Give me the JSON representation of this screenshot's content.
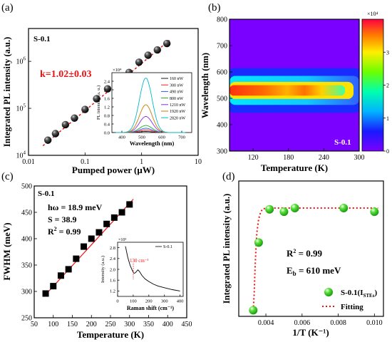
{
  "chart_data": [
    {
      "panel_label": "(a)",
      "type": "scatter",
      "sample": "S-0.1",
      "xlabel": "Pumped power (μW)",
      "ylabel": "Integrated PL intensity (a.u.)",
      "xscale": "log",
      "yscale": "log",
      "xlim": [
        0.01,
        10
      ],
      "ylim": [
        10000,
        5000000
      ],
      "xticks": [
        {
          "v": 0.01,
          "t": "0.01"
        },
        {
          "v": 0.1,
          "t": "0.1"
        },
        {
          "v": 1,
          "t": "1"
        },
        {
          "v": 10,
          "t": "10"
        }
      ],
      "yticks": [
        {
          "v": 10000,
          "t": "10",
          "e": "4"
        },
        {
          "v": 100000,
          "t": "10",
          "e": "5"
        },
        {
          "v": 1000000,
          "t": "10",
          "e": "6"
        }
      ],
      "annotation": "k=1.02±0.03",
      "points": {
        "x": [
          0.022,
          0.03,
          0.045,
          0.065,
          0.1,
          0.16,
          0.25,
          0.4,
          0.6,
          0.9,
          1.3,
          1.9,
          2.8
        ],
        "y": [
          21000,
          29000,
          45000,
          62000,
          95000,
          160000,
          260000,
          390000,
          580000,
          960000,
          1350000,
          1750000,
          2400000
        ]
      },
      "fit": {
        "x": [
          0.018,
          3.2
        ],
        "y": [
          16000,
          2900000
        ]
      },
      "inset": {
        "type": "line",
        "xlabel": "Wavelength (nm)",
        "ylabel": "PL intensity (a. u.)",
        "multiplier": "×10⁴",
        "xlim": [
          350,
          750
        ],
        "ylim": [
          0,
          2.8
        ],
        "xticks": [
          {
            "v": 400,
            "t": "400"
          },
          {
            "v": 500,
            "t": "500"
          },
          {
            "v": 600,
            "t": "600"
          },
          {
            "v": 700,
            "t": "700"
          }
        ],
        "yticks": [
          {
            "v": 0,
            "t": "0.0"
          },
          {
            "v": 0.4,
            "t": "0.4"
          },
          {
            "v": 0.8,
            "t": "0.8"
          },
          {
            "v": 1.2,
            "t": "1.2"
          },
          {
            "v": 1.6,
            "t": "1.6"
          },
          {
            "v": 2.0,
            "t": "2.0"
          },
          {
            "v": 2.4,
            "t": "2.4"
          }
        ],
        "peak_center": 520,
        "peak_width": 45,
        "series": [
          {
            "name": "160 nW",
            "peak": 0.05,
            "color": "#1a1a1a"
          },
          {
            "name": "300 nW",
            "peak": 0.12,
            "color": "#ff1a1a"
          },
          {
            "name": "490 nW",
            "peak": 0.2,
            "color": "#3355ee"
          },
          {
            "name": "800 nW",
            "peak": 0.33,
            "color": "#22aa22"
          },
          {
            "name": "1210 nW",
            "peak": 0.75,
            "color": "#8a2be2"
          },
          {
            "name": "1920 nW",
            "peak": 1.3,
            "color": "#cc7a00"
          },
          {
            "name": "2820 nW",
            "peak": 2.55,
            "color": "#00b8c8"
          }
        ]
      }
    },
    {
      "panel_label": "(b)",
      "type": "heatmap",
      "sample": "S-0.1",
      "xlabel": "Temperature (K)",
      "ylabel": "Wavelength (nm)",
      "xlim": [
        80,
        300
      ],
      "ylim": [
        300,
        800
      ],
      "xticks": [
        {
          "v": 120,
          "t": "120"
        },
        {
          "v": 180,
          "t": "180"
        },
        {
          "v": 240,
          "t": "240"
        },
        {
          "v": 300,
          "t": "300"
        }
      ],
      "yticks": [
        {
          "v": 300,
          "t": "300"
        },
        {
          "v": 400,
          "t": "400"
        },
        {
          "v": 500,
          "t": "500"
        },
        {
          "v": 600,
          "t": "600"
        },
        {
          "v": 700,
          "t": "700"
        },
        {
          "v": 800,
          "t": "800"
        }
      ],
      "colorbar": {
        "multiplier": "×10⁴",
        "range": [
          0,
          4
        ],
        "ticks": [
          {
            "v": 0,
            "t": "0"
          },
          {
            "v": 1,
            "t": "1"
          },
          {
            "v": 2,
            "t": "2"
          },
          {
            "v": 3,
            "t": "3"
          }
        ]
      },
      "band": {
        "center_nm": 530,
        "width_nm": 25,
        "intensity_by_T": [
          {
            "T": 80,
            "I": 3.8
          },
          {
            "T": 150,
            "I": 3.2
          },
          {
            "T": 190,
            "I": 2.6
          },
          {
            "T": 225,
            "I": 3.1
          },
          {
            "T": 260,
            "I": 2.2
          },
          {
            "T": 300,
            "I": 1.2
          }
        ]
      }
    },
    {
      "panel_label": "(c)",
      "type": "scatter",
      "sample": "S-0.1",
      "xlabel": "Temperature (K)",
      "ylabel": "FWHM (meV)",
      "xlim": [
        50,
        450
      ],
      "ylim": [
        250,
        500
      ],
      "xticks": [
        {
          "v": 50,
          "t": "50"
        },
        {
          "v": 100,
          "t": "100"
        },
        {
          "v": 150,
          "t": "150"
        },
        {
          "v": 200,
          "t": "200"
        },
        {
          "v": 250,
          "t": "250"
        },
        {
          "v": 300,
          "t": "300"
        },
        {
          "v": 350,
          "t": "350"
        },
        {
          "v": 400,
          "t": "400"
        },
        {
          "v": 450,
          "t": "450"
        }
      ],
      "yticks": [
        {
          "v": 250,
          "t": "250"
        },
        {
          "v": 300,
          "t": "300"
        },
        {
          "v": 350,
          "t": "350"
        },
        {
          "v": 400,
          "t": "400"
        },
        {
          "v": 450,
          "t": "450"
        },
        {
          "v": 500,
          "t": "500"
        }
      ],
      "params": {
        "homega": "hω = 18.9 meV",
        "S": "S = 38.9",
        "R2_lead": "R",
        "R2_sup": "2",
        "R2_val": " = 0.99"
      },
      "points": {
        "x": [
          80,
          100,
          120,
          140,
          160,
          180,
          200,
          220,
          240,
          260,
          280,
          300
        ],
        "y": [
          296,
          310,
          330,
          342,
          362,
          385,
          400,
          412,
          428,
          440,
          450,
          465
        ]
      },
      "fit": {
        "x": [
          75,
          310
        ],
        "y": [
          290,
          475
        ]
      },
      "inset": {
        "type": "line",
        "xlabel": "Raman shift (cm⁻¹)",
        "ylabel": "Intensity (a.u.)",
        "multiplier": "×10³",
        "legend": "S-0.1",
        "annotation": "130 cm⁻¹",
        "xlim": [
          0,
          420
        ],
        "ylim": [
          1.0,
          3.0
        ],
        "xticks": [
          {
            "v": 0,
            "t": "0"
          },
          {
            "v": 100,
            "t": "100"
          },
          {
            "v": 200,
            "t": "200"
          },
          {
            "v": 300,
            "t": "300"
          },
          {
            "v": 400,
            "t": "400"
          }
        ],
        "yticks": [
          {
            "v": 1.2,
            "t": "1.2"
          },
          {
            "v": 1.6,
            "t": "1.6"
          },
          {
            "v": 2.0,
            "t": "2.0"
          },
          {
            "v": 2.4,
            "t": "2.4"
          },
          {
            "v": 2.8,
            "t": "2.8"
          }
        ],
        "curve": {
          "x": [
            50,
            65,
            80,
            95,
            105,
            115,
            125,
            130,
            140,
            155,
            175,
            200,
            230,
            260,
            300,
            350,
            400
          ],
          "y": [
            2.85,
            2.45,
            2.15,
            1.95,
            1.85,
            1.88,
            1.95,
            1.98,
            1.92,
            1.78,
            1.65,
            1.55,
            1.45,
            1.38,
            1.32,
            1.25,
            1.2
          ]
        }
      }
    },
    {
      "panel_label": "(d)",
      "type": "scatter",
      "xlabel": "1/T (K⁻¹)",
      "ylabel": "Integrated PL intensity (a.u.)",
      "xlim": [
        0.0025,
        0.0105
      ],
      "xticks": [
        {
          "v": 0.004,
          "t": "0.004"
        },
        {
          "v": 0.006,
          "t": "0.006"
        },
        {
          "v": 0.008,
          "t": "0.008"
        },
        {
          "v": 0.01,
          "t": "0.010"
        }
      ],
      "ylim": [
        0,
        1.1
      ],
      "params": {
        "R2_lead": "R",
        "R2_sup": "2",
        "R2_val": " = 0.99",
        "Eb_lead": "E",
        "Eb_sub": "b",
        "Eb_val": " = 610 meV"
      },
      "legend": {
        "points": "S-0.1(I",
        "points_sub": "STEs",
        "points_close": ")",
        "fit": "Fitting"
      },
      "points": {
        "x": [
          0.0033,
          0.0036,
          0.0042,
          0.005,
          0.0056,
          0.0083,
          0.01
        ],
        "y": [
          0.05,
          0.6,
          0.87,
          0.85,
          0.88,
          0.88,
          0.85
        ]
      },
      "fit": {
        "x": [
          0.0033,
          0.00335,
          0.0034,
          0.00345,
          0.0035,
          0.0036,
          0.0037,
          0.0038,
          0.004,
          0.0045,
          0.005,
          0.006,
          0.008,
          0.0102
        ],
        "y": [
          0.05,
          0.18,
          0.38,
          0.55,
          0.68,
          0.79,
          0.84,
          0.87,
          0.88,
          0.88,
          0.88,
          0.88,
          0.88,
          0.88
        ]
      }
    }
  ]
}
